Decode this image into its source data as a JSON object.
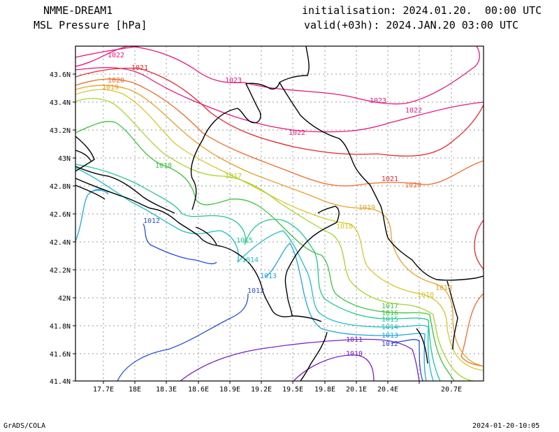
{
  "header": {
    "model": "NMME-DREAM1",
    "variable": "MSL Pressure [hPa]",
    "init": "initialisation: 2024.01.20.  00:00 UTC",
    "valid": "valid(+03h): 2024.JAN.20 03:00 UTC"
  },
  "map": {
    "lon_ticks": [
      "17.7E",
      "18E",
      "18.3E",
      "18.6E",
      "18.9E",
      "19.2E",
      "19.5E",
      "19.8E",
      "20.1E",
      "20.4E",
      "20.7E"
    ],
    "lat_ticks": [
      "43.6N",
      "43.4N",
      "43.2N",
      "43N",
      "42.8N",
      "42.6N",
      "42.4N",
      "42.2N",
      "42N",
      "41.8N",
      "41.6N",
      "41.4N"
    ],
    "contour_labels": [
      "1022",
      "1021",
      "1020",
      "1019",
      "1023",
      "1023",
      "1022",
      "1022",
      "1018",
      "1017",
      "1021",
      "1020",
      "1019",
      "1018",
      "1012",
      "1015",
      "1014",
      "1013",
      "1012",
      "1019",
      "1018",
      "1017",
      "1016",
      "1015",
      "1014",
      "1013",
      "1012",
      "1011",
      "1010"
    ]
  },
  "footer": {
    "left": "GrADS/COLA",
    "right": "2024-01-20-10:05"
  }
}
